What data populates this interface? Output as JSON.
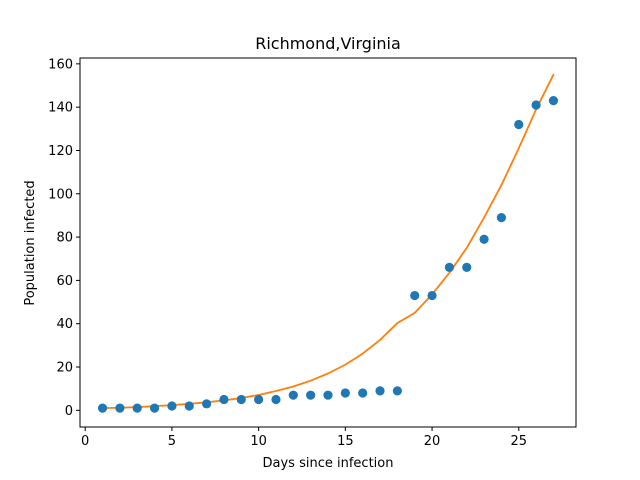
{
  "chart_data": {
    "type": "scatter",
    "title": "Richmond,Virginia",
    "xlabel": "Days since infection",
    "ylabel": "Population infected",
    "xlim": [
      -0.3,
      28.3
    ],
    "ylim": [
      -7.7,
      162.7
    ],
    "xticks": [
      0,
      5,
      10,
      15,
      20,
      25
    ],
    "yticks": [
      0,
      20,
      40,
      60,
      80,
      100,
      120,
      140,
      160
    ],
    "grid": false,
    "legend": "none",
    "series": [
      {
        "kind": "scatter",
        "color": "#1f77b4",
        "x": [
          1,
          2,
          3,
          4,
          5,
          6,
          7,
          8,
          9,
          10,
          11,
          12,
          13,
          14,
          15,
          16,
          17,
          18,
          19,
          20,
          21,
          22,
          23,
          24,
          25,
          26,
          27
        ],
        "y": [
          1,
          1,
          1,
          1,
          2,
          2,
          3,
          5,
          5,
          5,
          5,
          7,
          7,
          7,
          8,
          8,
          9,
          9,
          53,
          53,
          66,
          66,
          79,
          89,
          132,
          141,
          143
        ]
      },
      {
        "kind": "line",
        "color": "#ff7f0e",
        "x": [
          1,
          2,
          3,
          4,
          5,
          6,
          7,
          8,
          9,
          10,
          11,
          12,
          13,
          14,
          15,
          16,
          17,
          18,
          19,
          20,
          21,
          22,
          23,
          24,
          25,
          26,
          27
        ],
        "y": [
          1.0,
          1.2,
          1.5,
          1.9,
          2.4,
          3.0,
          3.7,
          4.6,
          5.7,
          7.1,
          8.9,
          11.0,
          13.7,
          17.0,
          21.1,
          26.2,
          32.5,
          40.3,
          45.0,
          53.5,
          63.5,
          75.0,
          89.0,
          104.0,
          121.0,
          139.0,
          155.0
        ]
      }
    ]
  }
}
